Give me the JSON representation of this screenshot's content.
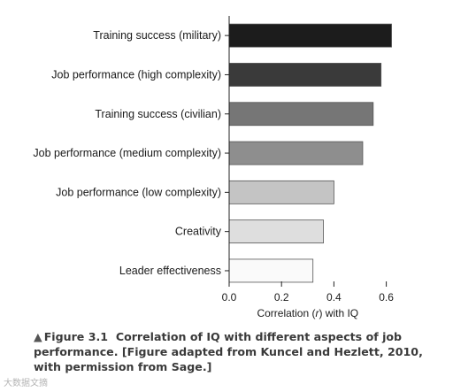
{
  "chart_data": {
    "type": "bar",
    "orientation": "horizontal",
    "categories": [
      "Training success (military)",
      "Job performance (high complexity)",
      "Training success (civilian)",
      "Job performance (medium complexity)",
      "Job performance (low complexity)",
      "Creativity",
      "Leader effectiveness"
    ],
    "values": [
      0.62,
      0.58,
      0.55,
      0.51,
      0.4,
      0.36,
      0.32
    ],
    "bar_colors": [
      "#1c1c1c",
      "#3a3a3a",
      "#767676",
      "#8e8e8e",
      "#c4c4c4",
      "#dedede",
      "#fafafa"
    ],
    "xlabel_prefix": "Correlation (",
    "xlabel_var": "r",
    "xlabel_suffix": ") with IQ",
    "xlim": [
      0,
      0.7
    ],
    "xticks": [
      "0.0",
      "0.2",
      "0.4",
      "0.6"
    ],
    "xtick_values": [
      0,
      0.2,
      0.4,
      0.6
    ],
    "grid": false
  },
  "caption": {
    "label": "Figure 3.1",
    "text": "Correlation of IQ with different aspects of job performance. [Figure adapted from Kuncel and Hezlett, 2010, with permission from Sage.]"
  },
  "watermark": "大数据文摘"
}
